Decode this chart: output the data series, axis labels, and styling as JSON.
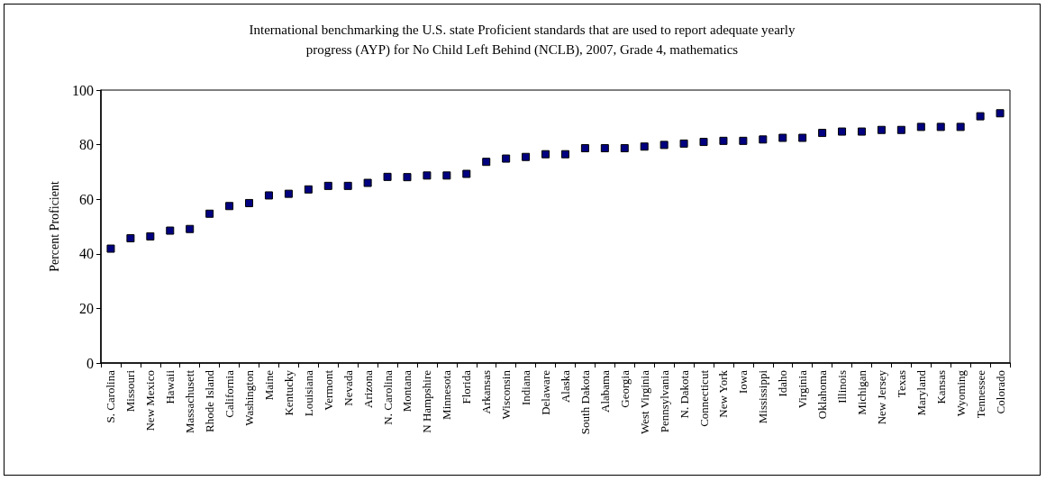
{
  "chart_data": {
    "type": "scatter",
    "title": "International benchmarking the U.S. state Proficient standards that are used to report adequate yearly\nprogress (AYP) for No Child Left Behind (NCLB), 2007, Grade 4, mathematics",
    "ylabel": "Percent Proficient",
    "categories": [
      "S. Carolina",
      "Missouri",
      "New Mexico",
      "Hawaii",
      "Massachusett",
      "Rhode Island",
      "California",
      "Washington",
      "Maine",
      "Kentucky",
      "Louisiana",
      "Vermont",
      "Nevada",
      "Arizona",
      "N. Carolina",
      "Montana",
      "N Hampshire",
      "Minnesota",
      "Florida",
      "Arkansas",
      "Wisconsin",
      "Indiana",
      "Delaware",
      "Alaska",
      "South Dakota",
      "Alabama",
      "Georgia",
      "West Virginia",
      "Pennsylvania",
      "N. Dakota",
      "Connecticut",
      "New York",
      "Iowa",
      "Mississippi",
      "Idaho",
      "Virginia",
      "Oklahoma",
      "Illinois",
      "Michigan",
      "New Jersey",
      "Texas",
      "Maryland",
      "Kansas",
      "Wyoming",
      "Tennessee",
      "Colorado"
    ],
    "values": [
      41.9,
      45.7,
      46.4,
      48.5,
      49.1,
      54.7,
      57.5,
      58.6,
      61.4,
      62.0,
      63.6,
      64.9,
      64.9,
      66.0,
      68.2,
      68.1,
      68.7,
      68.7,
      69.3,
      73.7,
      74.9,
      75.5,
      76.5,
      76.5,
      78.7,
      78.7,
      78.7,
      79.3,
      79.9,
      80.4,
      81.0,
      81.4,
      81.4,
      81.9,
      82.5,
      82.5,
      84.3,
      84.8,
      84.8,
      85.4,
      85.4,
      86.5,
      86.5,
      86.5,
      90.4,
      91.5
    ],
    "color": "#000080",
    "marker": "square",
    "ylim": [
      0,
      100
    ],
    "yticks": [
      0,
      20,
      40,
      60,
      80,
      100
    ],
    "grid": false
  }
}
